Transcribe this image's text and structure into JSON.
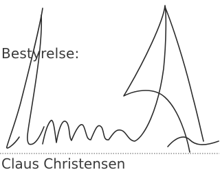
{
  "label": "Bestyrelse:",
  "signatory": "Claus Christensen"
}
